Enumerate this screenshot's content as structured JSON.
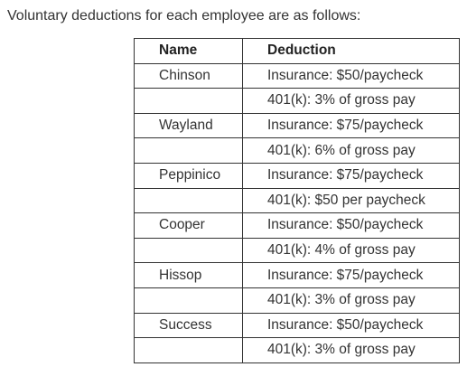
{
  "intro_text": "Voluntary deductions for each employee are as follows:",
  "table": {
    "headers": {
      "name": "Name",
      "deduction": "Deduction"
    },
    "rows": [
      {
        "name": "Chinson",
        "deduction": "Insurance: $50/paycheck"
      },
      {
        "name": "",
        "deduction": "401(k): 3% of gross pay"
      },
      {
        "name": "Wayland",
        "deduction": "Insurance: $75/paycheck"
      },
      {
        "name": "",
        "deduction": "401(k): 6% of gross pay"
      },
      {
        "name": "Peppinico",
        "deduction": "Insurance: $75/paycheck"
      },
      {
        "name": "",
        "deduction": "401(k): $50 per paycheck"
      },
      {
        "name": "Cooper",
        "deduction": "Insurance: $50/paycheck"
      },
      {
        "name": "",
        "deduction": "401(k): 4% of gross pay"
      },
      {
        "name": "Hissop",
        "deduction": "Insurance: $75/paycheck"
      },
      {
        "name": "",
        "deduction": "401(k): 3% of gross pay"
      },
      {
        "name": "Success",
        "deduction": "Insurance: $50/paycheck"
      },
      {
        "name": "",
        "deduction": "401(k): 3% of gross pay"
      }
    ]
  }
}
